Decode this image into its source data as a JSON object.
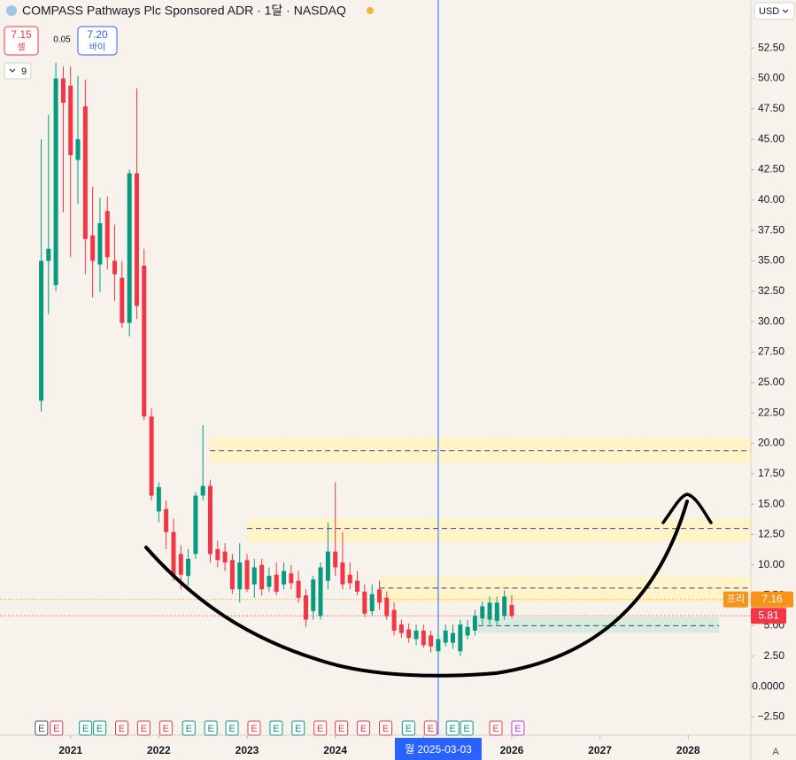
{
  "chart_data": {
    "type": "candlestick",
    "title": "COMPASS Pathways Plc Sponsored ADR · 1달 · NASDAQ",
    "currency": "USD",
    "sell": {
      "price": "7.15",
      "label": "셀"
    },
    "spread": "0.05",
    "buy": {
      "price": "7.20",
      "label": "바이"
    },
    "indicator_count": "9",
    "auto_button": "A",
    "up_color": "#089981",
    "down_color": "#f23645",
    "x": [
      2020.667,
      2020.75,
      2020.833,
      2020.917,
      2021,
      2021.083,
      2021.167,
      2021.25,
      2021.333,
      2021.417,
      2021.5,
      2021.583,
      2021.667,
      2021.75,
      2021.833,
      2021.917,
      2022,
      2022.083,
      2022.167,
      2022.25,
      2022.333,
      2022.417,
      2022.5,
      2022.583,
      2022.667,
      2022.75,
      2022.833,
      2022.917,
      2023,
      2023.083,
      2023.167,
      2023.25,
      2023.333,
      2023.417,
      2023.5,
      2023.583,
      2023.667,
      2023.75,
      2023.833,
      2023.917,
      2024,
      2024.083,
      2024.167,
      2024.25,
      2024.333,
      2024.417,
      2024.5,
      2024.583,
      2024.667,
      2024.75,
      2024.833,
      2024.917,
      2025,
      2025.083,
      2025.167,
      2025.25,
      2025.333,
      2025.417,
      2025.5,
      2025.583,
      2025.667,
      2025.75,
      2025.833,
      2025.917,
      2026
    ],
    "open": [
      23.5,
      35,
      33,
      50,
      49.4,
      43.3,
      47.7,
      37.1,
      34.7,
      39.1,
      35,
      33.6,
      29.9,
      42.2,
      34.6,
      22.2,
      14.4,
      14.6,
      12.7,
      10.9,
      9.1,
      10.9,
      15.7,
      16.5,
      11.3,
      11.1,
      10.4,
      8.0,
      10.4,
      8.4,
      10,
      8.2,
      9.2,
      8.4,
      9.3,
      8.7,
      7.5,
      6.2,
      5.8,
      8.7,
      11.1,
      10.2,
      9.2,
      8.7,
      7.8,
      6.2,
      8,
      7.3,
      6.3,
      5.1,
      4.7,
      3.9,
      4.6,
      4.2,
      2.9,
      3.6,
      3.6,
      2.9,
      4.2,
      4.6,
      5.6,
      5.5,
      5.4,
      5.8,
      6.7
    ],
    "high": [
      45,
      47,
      51.3,
      51,
      51,
      50.2,
      49.9,
      41.1,
      40.2,
      40.3,
      38,
      35,
      42.5,
      49.2,
      36,
      22.9,
      16.8,
      15.3,
      13.8,
      11.6,
      11.3,
      16.0,
      21.5,
      17.0,
      12.0,
      11.8,
      10.9,
      11.8,
      10.9,
      10.5,
      10.5,
      9.8,
      10.2,
      10.2,
      10.0,
      9.5,
      8.0,
      9.1,
      10.2,
      13.5,
      16.8,
      12.7,
      10.2,
      9.5,
      8.4,
      8.4,
      8.7,
      7.8,
      6.9,
      5.5,
      5.2,
      5.1,
      5.1,
      4.6,
      4.6,
      5.1,
      5.1,
      5.5,
      5.5,
      6.3,
      7.0,
      7.4,
      7.4,
      7.9,
      7.5
    ],
    "low": [
      22.6,
      30.6,
      32.5,
      39,
      35.3,
      39.7,
      33.9,
      32,
      32.4,
      34.3,
      31.7,
      29.5,
      28.8,
      30.2,
      21.9,
      15.3,
      13.5,
      11.3,
      8.7,
      8.0,
      8.3,
      10.5,
      15.3,
      10.2,
      9.8,
      9.5,
      7.6,
      6.9,
      7.8,
      7.3,
      7.5,
      7.8,
      7.5,
      8.0,
      8.0,
      6.9,
      4.9,
      5.5,
      5.5,
      8.0,
      9.1,
      8.0,
      8.0,
      7.5,
      5.7,
      5.8,
      6.3,
      5.5,
      4.2,
      4.0,
      3.6,
      3.4,
      3.2,
      2.8,
      2.5,
      3.3,
      3.1,
      2.5,
      3.9,
      4.2,
      5.1,
      5.1,
      5.1,
      5.5,
      5.6
    ],
    "close": [
      35,
      36,
      50,
      48,
      43.7,
      45,
      36.8,
      35,
      38.1,
      35.3,
      33.9,
      29.9,
      42.2,
      31.3,
      22.2,
      15.7,
      16.4,
      12.7,
      9.1,
      9.2,
      10.5,
      15.7,
      16.5,
      10.9,
      10.4,
      10.2,
      8.0,
      10.2,
      8.0,
      9.8,
      8,
      9.1,
      7.8,
      9.5,
      8.5,
      7.3,
      5.5,
      8.8,
      9.8,
      11.1,
      9.8,
      8.4,
      8.5,
      7.8,
      6.0,
      7.6,
      6.9,
      5.8,
      4.6,
      4.4,
      4.0,
      4.6,
      3.4,
      3.3,
      3.9,
      4.6,
      4.4,
      5.1,
      4.9,
      5.8,
      6.6,
      6.9,
      6.9,
      7.4,
      5.81
    ],
    "xlim": [
      2020.2,
      2028.71
    ],
    "xticks": [
      2021,
      2022,
      2023,
      2024,
      2025,
      2026,
      2027,
      2028
    ],
    "ylim": [
      -4.0,
      56.45
    ],
    "yticks": [
      {
        "value": 52.5,
        "label": "52.50"
      },
      {
        "value": 50,
        "label": "50.00"
      },
      {
        "value": 47.5,
        "label": "47.50"
      },
      {
        "value": 45,
        "label": "45.00"
      },
      {
        "value": 42.5,
        "label": "42.50"
      },
      {
        "value": 40,
        "label": "40.00"
      },
      {
        "value": 37.5,
        "label": "37.50"
      },
      {
        "value": 35,
        "label": "35.00"
      },
      {
        "value": 32.5,
        "label": "32.50"
      },
      {
        "value": 30,
        "label": "30.00"
      },
      {
        "value": 27.5,
        "label": "27.50"
      },
      {
        "value": 25,
        "label": "25.00"
      },
      {
        "value": 22.5,
        "label": "22.50"
      },
      {
        "value": 20,
        "label": "20.00"
      },
      {
        "value": 17.5,
        "label": "17.50"
      },
      {
        "value": 15,
        "label": "15.00"
      },
      {
        "value": 12.5,
        "label": "12.50"
      },
      {
        "value": 10,
        "label": "10.00"
      },
      {
        "value": 7.5,
        "label": "7.50"
      },
      {
        "value": 5,
        "label": "5.00"
      },
      {
        "value": 2.5,
        "label": "2.50"
      },
      {
        "value": 0,
        "label": "0.0000"
      },
      {
        "value": -2.5,
        "label": "−2.50"
      }
    ],
    "zones": [
      {
        "from": 18.4,
        "to": 20.5,
        "start": 2022.58,
        "end": 2028.71,
        "color": "#fff3c4"
      },
      {
        "from": 11.9,
        "to": 13.8,
        "start": 2023.0,
        "end": 2028.71,
        "color": "#fff3c4"
      },
      {
        "from": 6.9,
        "to": 9.1,
        "start": 2024.5,
        "end": 2028.71,
        "color": "#fff3c4"
      },
      {
        "from": 4.4,
        "to": 5.7,
        "start": 2025.62,
        "end": 2028.35,
        "color": "#d5ead8"
      }
    ],
    "levels": [
      {
        "value": 19.4,
        "start": 2022.58,
        "end": 2028.71
      },
      {
        "value": 13.0,
        "start": 2023.0,
        "end": 2028.71
      },
      {
        "value": 8.1,
        "start": 2024.5,
        "end": 2028.71
      },
      {
        "value": 5.0,
        "start": 2025.62,
        "end": 2028.35
      }
    ],
    "pre_market": {
      "label": "프리",
      "value": 7.16,
      "color": "#f7931a"
    },
    "last_price": {
      "value": 5.81,
      "color": "#f23645"
    },
    "crosshair": {
      "x": 2025.167,
      "label": "월 2025-03-03",
      "color": "#2962ff"
    },
    "events": [
      {
        "x": 2020.67,
        "label": "E",
        "color": "#50535e"
      },
      {
        "x": 2020.84,
        "label": "E",
        "color": "#f23645"
      },
      {
        "x": 2021.17,
        "label": "E",
        "color": "#089981"
      },
      {
        "x": 2021.33,
        "label": "E",
        "color": "#089981"
      },
      {
        "x": 2021.58,
        "label": "E",
        "color": "#f23645"
      },
      {
        "x": 2021.83,
        "label": "E",
        "color": "#f23645"
      },
      {
        "x": 2022.08,
        "label": "E",
        "color": "#f23645"
      },
      {
        "x": 2022.34,
        "label": "E",
        "color": "#089981"
      },
      {
        "x": 2022.59,
        "label": "E",
        "color": "#089981"
      },
      {
        "x": 2022.83,
        "label": "E",
        "color": "#089981"
      },
      {
        "x": 2023.08,
        "label": "E",
        "color": "#f23645"
      },
      {
        "x": 2023.33,
        "label": "E",
        "color": "#089981"
      },
      {
        "x": 2023.58,
        "label": "E",
        "color": "#089981"
      },
      {
        "x": 2023.83,
        "label": "E",
        "color": "#f23645"
      },
      {
        "x": 2024.07,
        "label": "E",
        "color": "#f23645"
      },
      {
        "x": 2024.32,
        "label": "E",
        "color": "#f23645"
      },
      {
        "x": 2024.57,
        "label": "E",
        "color": "#f23645"
      },
      {
        "x": 2024.83,
        "label": "E",
        "color": "#089981"
      },
      {
        "x": 2025.08,
        "label": "E",
        "color": "#f23645"
      },
      {
        "x": 2025.33,
        "label": "E",
        "color": "#089981"
      },
      {
        "x": 2025.49,
        "label": "E",
        "color": "#089981"
      },
      {
        "x": 2025.82,
        "label": "E",
        "color": "#f23645"
      },
      {
        "x": 2026.07,
        "label": "E",
        "color": "#c63bd6"
      }
    ]
  }
}
